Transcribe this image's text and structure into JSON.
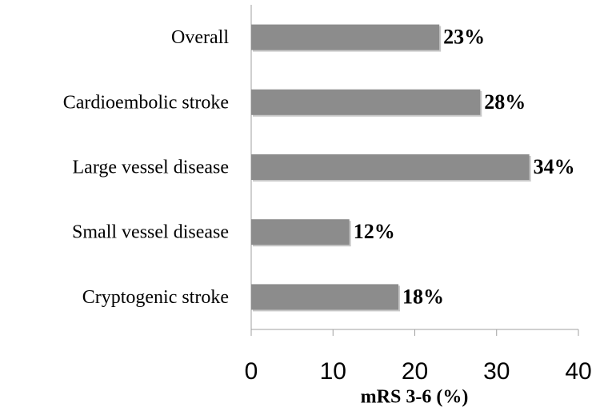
{
  "chart_data": {
    "type": "hbar",
    "categories": [
      "Overall",
      "Cardioembolic stroke",
      "Large vessel disease",
      "Small vessel disease",
      "Cryptogenic stroke"
    ],
    "values": [
      23,
      28,
      34,
      12,
      18
    ],
    "value_labels": [
      "23%",
      "28%",
      "34%",
      "12%",
      "18%"
    ],
    "color": "#8c8c8c",
    "xlabel": "mRS 3-6 (%)",
    "xlim": [
      0,
      40
    ],
    "xticks": [
      0,
      10,
      20,
      30,
      40
    ],
    "grid": false
  }
}
